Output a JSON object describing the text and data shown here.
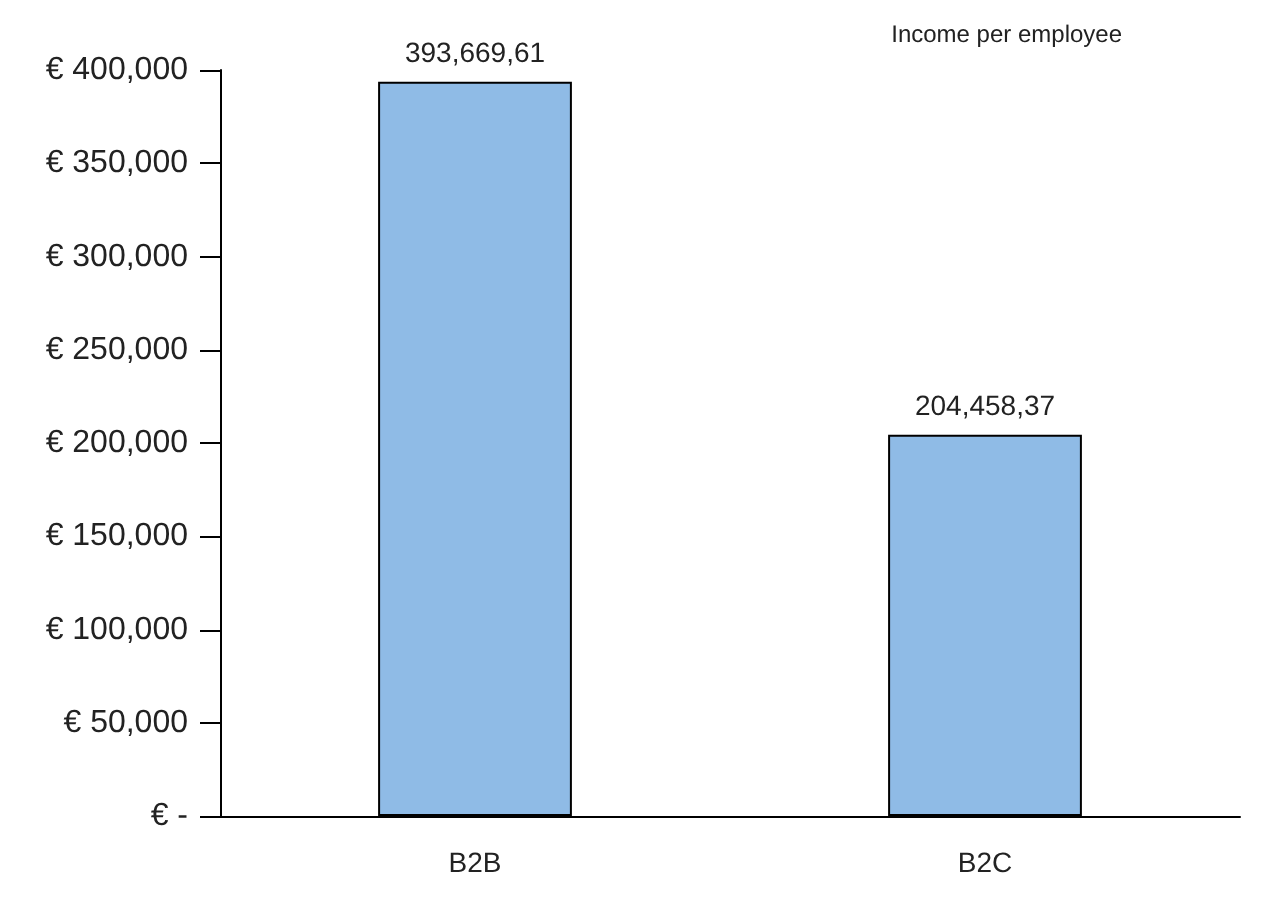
{
  "chart_data": {
    "type": "bar",
    "title": "Income per employee",
    "categories": [
      "B2B",
      "B2C"
    ],
    "values": [
      393669.61,
      204458.37
    ],
    "value_labels": [
      "393,669,61",
      "204,458,37"
    ],
    "color": "#8fbbe6",
    "ylim": [
      0,
      400000
    ],
    "yticks": [
      {
        "value": 0,
        "label": "€ -"
      },
      {
        "value": 50000,
        "label": "€ 50,000"
      },
      {
        "value": 100000,
        "label": "€ 100,000"
      },
      {
        "value": 150000,
        "label": "€ 150,000"
      },
      {
        "value": 200000,
        "label": "€ 200,000"
      },
      {
        "value": 250000,
        "label": "€ 250,000"
      },
      {
        "value": 300000,
        "label": "€ 300,000"
      },
      {
        "value": 350000,
        "label": "€ 350,000"
      },
      {
        "value": 400000,
        "label": "€ 400,000"
      }
    ],
    "grid": false
  }
}
